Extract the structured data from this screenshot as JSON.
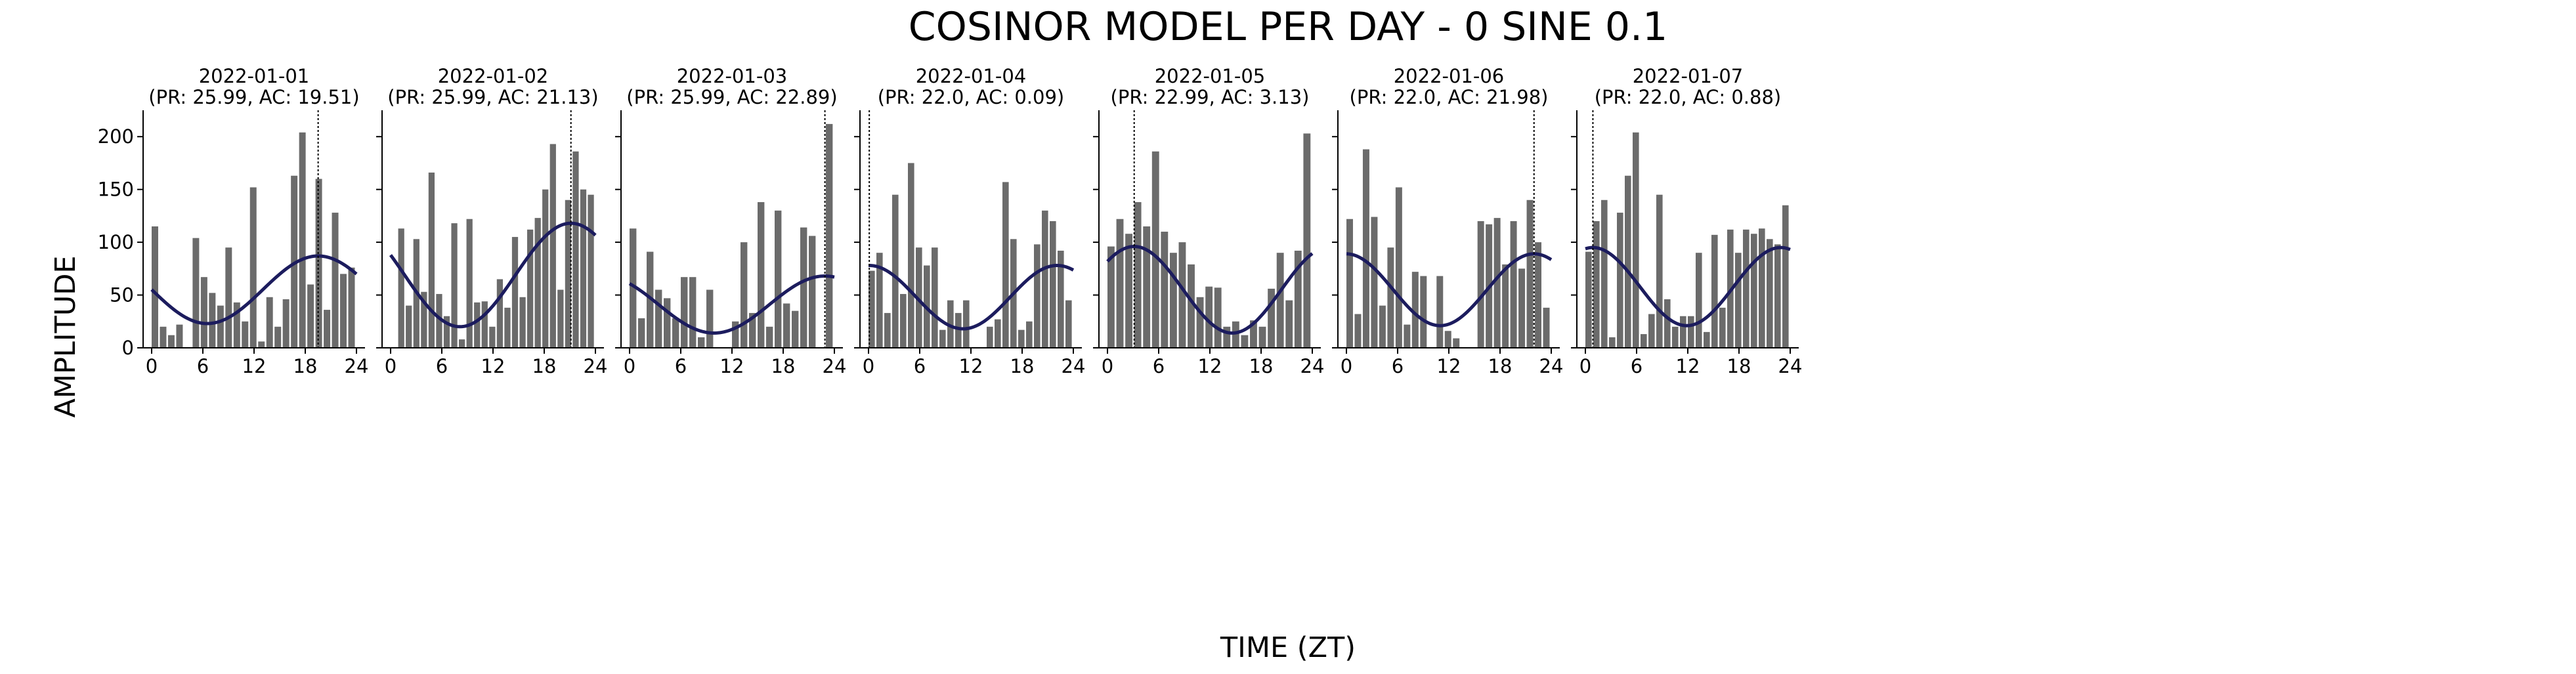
{
  "title": "COSINOR MODEL PER DAY - 0 SINE 0.1",
  "xlabel": "TIME (ZT)",
  "ylabel": "AMPLITUDE",
  "colors": {
    "bars": "#6b6b6b",
    "curve": "#1c1c5e",
    "acrophase_line": "#000000"
  },
  "chart_data": {
    "type": "bar",
    "xlim": [
      -1,
      25
    ],
    "ylim": [
      0,
      225
    ],
    "xticks": [
      0,
      6,
      12,
      18,
      24
    ],
    "yticks": [
      0,
      50,
      100,
      150,
      200
    ],
    "grid": false,
    "panels": [
      {
        "title": "2022-01-01",
        "subtitle": "(PR: 25.99, AC: 19.51)",
        "period": 25.99,
        "acrophase": 19.51,
        "mesor": 55,
        "amplitude": 32,
        "values": [
          115,
          20,
          12,
          22,
          0,
          104,
          67,
          52,
          40,
          95,
          43,
          25,
          152,
          6,
          48,
          20,
          46,
          163,
          204,
          60,
          160,
          36,
          128,
          70,
          76
        ]
      },
      {
        "title": "2022-01-02",
        "subtitle": "(PR: 25.99, AC: 21.13)",
        "period": 25.99,
        "acrophase": 21.13,
        "mesor": 69,
        "amplitude": 49,
        "values": [
          0,
          113,
          40,
          103,
          53,
          166,
          51,
          30,
          118,
          8,
          122,
          43,
          44,
          20,
          65,
          38,
          105,
          48,
          112,
          123,
          150,
          193,
          55,
          140,
          186,
          150,
          145
        ]
      },
      {
        "title": "2022-01-03",
        "subtitle": "(PR: 25.99, AC: 22.89)",
        "period": 25.99,
        "acrophase": 22.89,
        "mesor": 41,
        "amplitude": 27,
        "values": [
          113,
          28,
          91,
          55,
          47,
          28,
          67,
          67,
          10,
          55,
          0,
          0,
          25,
          100,
          33,
          138,
          20,
          130,
          42,
          35,
          114,
          106,
          0,
          212
        ]
      },
      {
        "title": "2022-01-04",
        "subtitle": "(PR: 22.0, AC: 0.09)",
        "period": 22.0,
        "acrophase": 0.09,
        "mesor": 48,
        "amplitude": 30,
        "values": [
          73,
          90,
          33,
          145,
          51,
          175,
          95,
          78,
          95,
          17,
          45,
          33,
          45,
          0,
          0,
          20,
          27,
          157,
          103,
          17,
          25,
          98,
          130,
          120,
          92,
          45
        ]
      },
      {
        "title": "2022-01-05",
        "subtitle": "(PR: 22.99, AC: 3.13)",
        "period": 22.99,
        "acrophase": 3.13,
        "mesor": 55,
        "amplitude": 41,
        "values": [
          96,
          122,
          108,
          138,
          115,
          186,
          110,
          90,
          100,
          79,
          48,
          58,
          57,
          20,
          25,
          12,
          26,
          20,
          56,
          90,
          45,
          92,
          203
        ]
      },
      {
        "title": "2022-01-06",
        "subtitle": "(PR: 22.0, AC: 21.98)",
        "period": 22.0,
        "acrophase": 21.98,
        "mesor": 55,
        "amplitude": 34,
        "values": [
          122,
          32,
          188,
          124,
          40,
          95,
          152,
          22,
          72,
          68,
          0,
          68,
          16,
          9,
          0,
          0,
          120,
          117,
          123,
          79,
          120,
          75,
          140,
          100,
          38
        ]
      },
      {
        "title": "2022-01-07",
        "subtitle": "(PR: 22.0, AC: 0.88)",
        "period": 22.0,
        "acrophase": 0.88,
        "mesor": 58,
        "amplitude": 37,
        "values": [
          91,
          120,
          140,
          10,
          128,
          163,
          204,
          13,
          32,
          145,
          46,
          20,
          30,
          30,
          90,
          15,
          107,
          38,
          112,
          90,
          112,
          108,
          113,
          103,
          98,
          135
        ]
      }
    ]
  }
}
